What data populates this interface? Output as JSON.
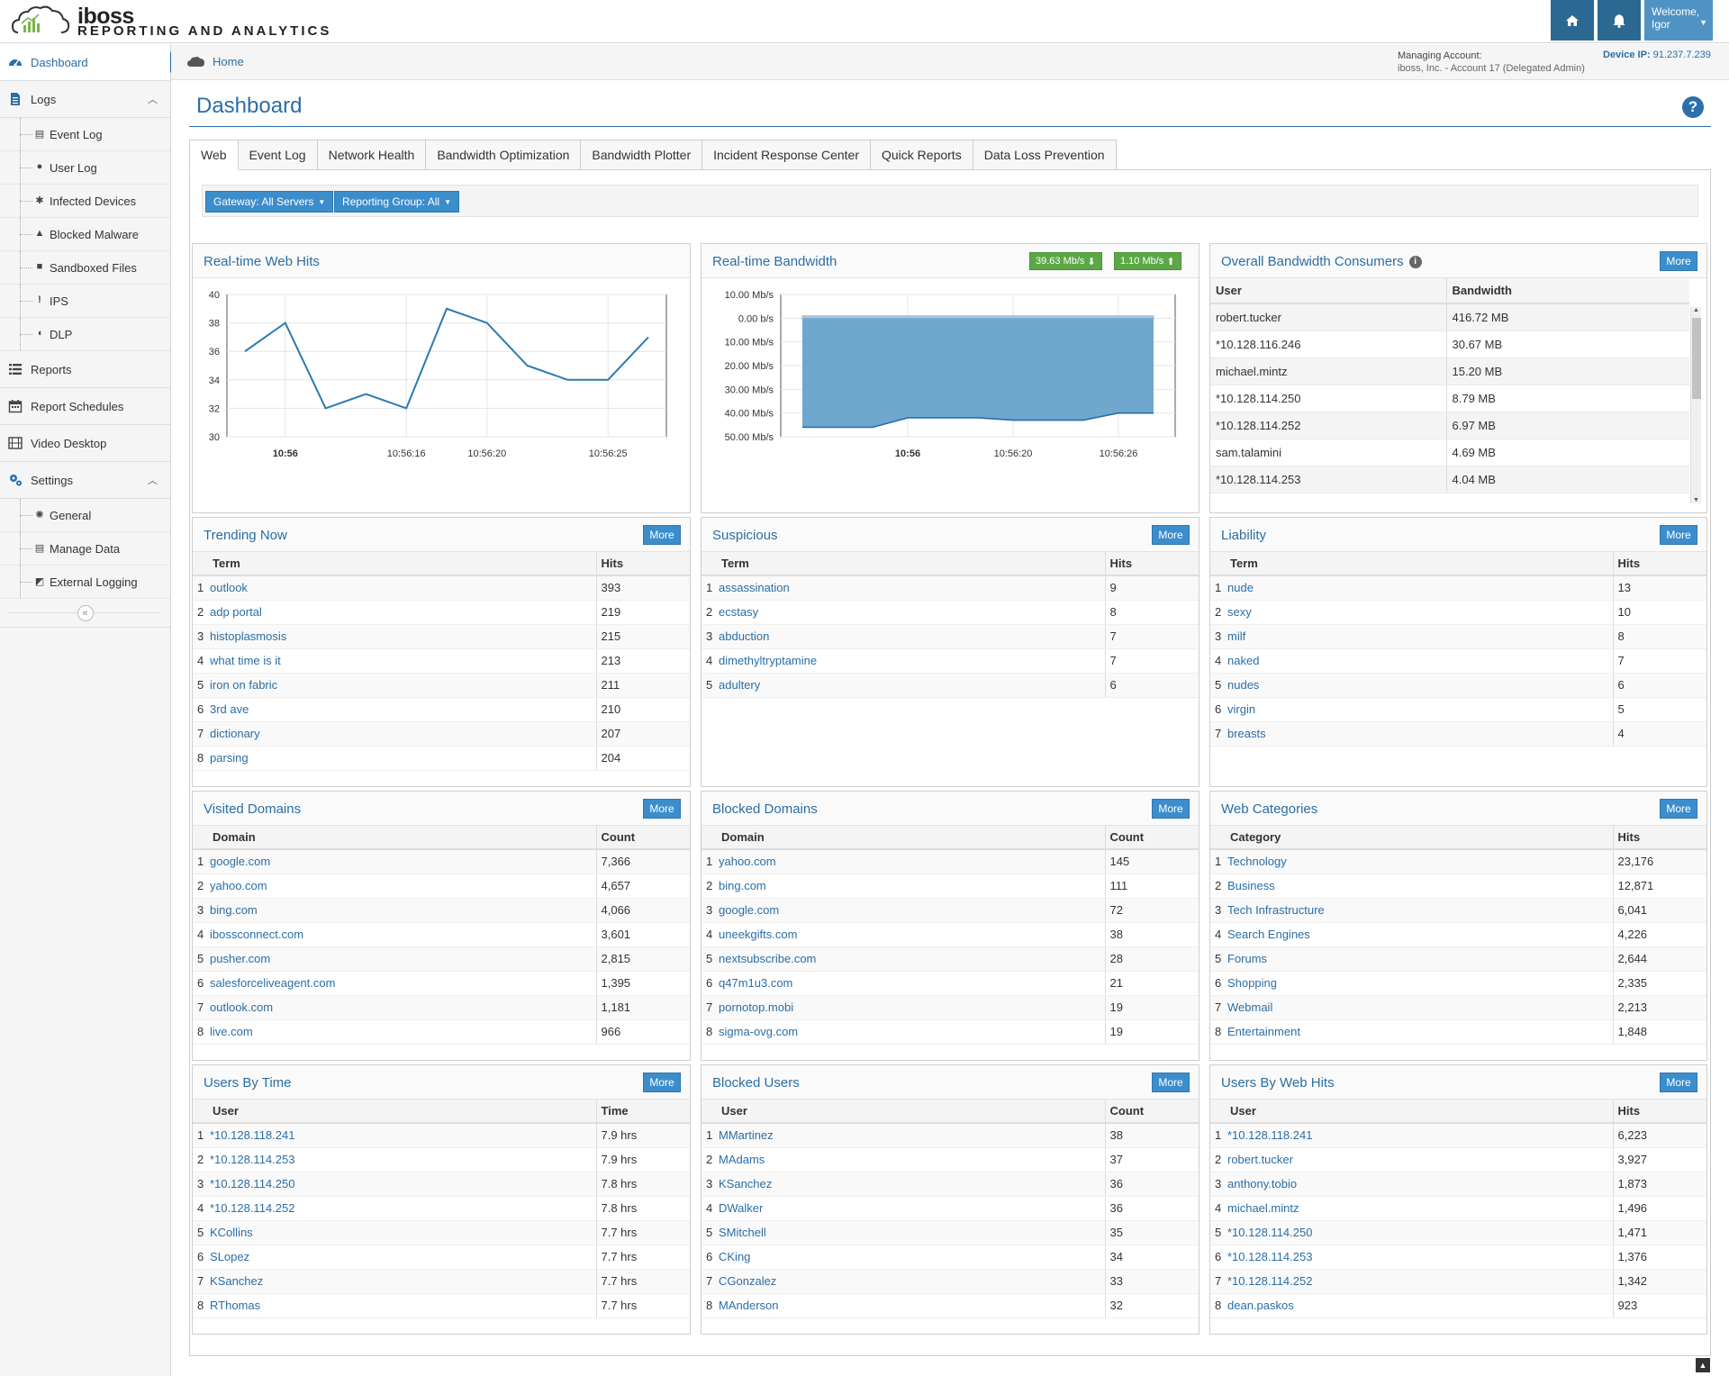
{
  "header": {
    "brand": "iboss",
    "subtitle": "REPORTING AND ANALYTICS",
    "welcome_line1": "Welcome,",
    "welcome_line2": "Igor",
    "accent": "#2b6892"
  },
  "sidebar": {
    "items": [
      {
        "label": "Dashboard",
        "icon": "dashboard-icon",
        "active": true
      },
      {
        "label": "Logs",
        "icon": "document-icon",
        "expanded": true,
        "children": [
          {
            "label": "Event Log",
            "icon": "document-icon"
          },
          {
            "label": "User Log",
            "icon": "user-icon"
          },
          {
            "label": "Infected Devices",
            "icon": "bug-icon"
          },
          {
            "label": "Blocked Malware",
            "icon": "warning-icon"
          },
          {
            "label": "Sandboxed Files",
            "icon": "box-icon"
          },
          {
            "label": "IPS",
            "icon": "exclamation-icon"
          },
          {
            "label": "DLP",
            "icon": "shield-icon"
          }
        ]
      },
      {
        "label": "Reports",
        "icon": "list-icon"
      },
      {
        "label": "Report Schedules",
        "icon": "calendar-icon"
      },
      {
        "label": "Video Desktop",
        "icon": "film-icon"
      },
      {
        "label": "Settings",
        "icon": "gears-icon",
        "expanded": true,
        "children": [
          {
            "label": "General",
            "icon": "gear-icon"
          },
          {
            "label": "Manage Data",
            "icon": "document-icon"
          },
          {
            "label": "External Logging",
            "icon": "external-icon"
          }
        ]
      }
    ]
  },
  "breadcrumb": {
    "home": "Home"
  },
  "account": {
    "managing_label": "Managing Account:",
    "managing_value": "iboss, Inc. - Account 17 (Delegated Admin)",
    "device_ip_label": "Device IP:",
    "device_ip_value": "91.237.7.239"
  },
  "page": {
    "title": "Dashboard",
    "help": "?"
  },
  "tabs": [
    "Web",
    "Event Log",
    "Network Health",
    "Bandwidth Optimization",
    "Bandwidth Plotter",
    "Incident Response Center",
    "Quick Reports",
    "Data Loss Prevention"
  ],
  "filters": {
    "gateway": "Gateway: All Servers",
    "reporting_group": "Reporting Group: All"
  },
  "more_label": "More",
  "chart_data": [
    {
      "type": "line",
      "title": "Real-time Web Hits",
      "x": [
        0,
        1,
        2,
        3,
        4,
        5,
        6,
        7,
        8,
        9,
        10
      ],
      "values": [
        36,
        38,
        32,
        33,
        32,
        39,
        38,
        35,
        34,
        34,
        37
      ],
      "ylim": [
        30,
        40
      ],
      "yticks": [
        30,
        32,
        34,
        36,
        38,
        40
      ],
      "xtick_labels": [
        {
          "at": 1,
          "label": "10:56",
          "bold": true
        },
        {
          "at": 4,
          "label": "10:56:16"
        },
        {
          "at": 6,
          "label": "10:56:20"
        },
        {
          "at": 9,
          "label": "10:56:25"
        }
      ],
      "color": "#2a7ab0"
    },
    {
      "type": "area",
      "title": "Real-time Bandwidth",
      "download": "39.63 Mb/s",
      "upload": "1.10 Mb/s",
      "ytick_labels": [
        "10.00 Mb/s",
        "0.00 b/s",
        "10.00 Mb/s",
        "20.00 Mb/s",
        "30.00 Mb/s",
        "40.00 Mb/s",
        "50.00 Mb/s"
      ],
      "ylim": [
        -10,
        50
      ],
      "x": [
        0,
        1,
        2,
        3,
        4,
        5,
        6,
        7,
        8,
        9,
        10
      ],
      "download_values": [
        46,
        46,
        46,
        42,
        42,
        42,
        43,
        43,
        43,
        40,
        40
      ],
      "upload_values": [
        1,
        1,
        1,
        1,
        1,
        1,
        1,
        1,
        1,
        1,
        1
      ],
      "xtick_labels": [
        {
          "at": 3,
          "label": "10:56",
          "bold": true
        },
        {
          "at": 6,
          "label": "10:56:20"
        },
        {
          "at": 9,
          "label": "10:56:26"
        }
      ],
      "fill": "#6fa7cf",
      "line": "#2a6ea6",
      "badge_color": "#5ba845"
    }
  ],
  "bandwidth_consumers": {
    "title": "Overall Bandwidth Consumers",
    "columns": [
      "User",
      "Bandwidth"
    ],
    "rows": [
      [
        "robert.tucker",
        "416.72 MB"
      ],
      [
        "*10.128.116.246",
        "30.67 MB"
      ],
      [
        "michael.mintz",
        "15.20 MB"
      ],
      [
        "*10.128.114.250",
        "8.79 MB"
      ],
      [
        "*10.128.114.252",
        "6.97 MB"
      ],
      [
        "sam.talamini",
        "4.69 MB"
      ],
      [
        "*10.128.114.253",
        "4.04 MB"
      ]
    ]
  },
  "panels": [
    {
      "title": "Trending Now",
      "cols": [
        "Term",
        "Hits"
      ],
      "rows": [
        [
          "outlook",
          "393"
        ],
        [
          "adp portal",
          "219"
        ],
        [
          "histoplasmosis",
          "215"
        ],
        [
          "what time is it",
          "213"
        ],
        [
          "iron on fabric",
          "211"
        ],
        [
          "3rd ave",
          "210"
        ],
        [
          "dictionary",
          "207"
        ],
        [
          "parsing",
          "204"
        ]
      ]
    },
    {
      "title": "Suspicious",
      "cols": [
        "Term",
        "Hits"
      ],
      "rows": [
        [
          "assassination",
          "9"
        ],
        [
          "ecstasy",
          "8"
        ],
        [
          "abduction",
          "7"
        ],
        [
          "dimethyltryptamine",
          "7"
        ],
        [
          "adultery",
          "6"
        ]
      ]
    },
    {
      "title": "Liability",
      "cols": [
        "Term",
        "Hits"
      ],
      "rows": [
        [
          "nude",
          "13"
        ],
        [
          "sexy",
          "10"
        ],
        [
          "milf",
          "8"
        ],
        [
          "naked",
          "7"
        ],
        [
          "nudes",
          "6"
        ],
        [
          "virgin",
          "5"
        ],
        [
          "breasts",
          "4"
        ]
      ]
    },
    {
      "title": "Visited Domains",
      "cols": [
        "Domain",
        "Count"
      ],
      "rows": [
        [
          "google.com",
          "7,366"
        ],
        [
          "yahoo.com",
          "4,657"
        ],
        [
          "bing.com",
          "4,066"
        ],
        [
          "ibossconnect.com",
          "3,601"
        ],
        [
          "pusher.com",
          "2,815"
        ],
        [
          "salesforceliveagent.com",
          "1,395"
        ],
        [
          "outlook.com",
          "1,181"
        ],
        [
          "live.com",
          "966"
        ]
      ]
    },
    {
      "title": "Blocked Domains",
      "cols": [
        "Domain",
        "Count"
      ],
      "rows": [
        [
          "yahoo.com",
          "145"
        ],
        [
          "bing.com",
          "111"
        ],
        [
          "google.com",
          "72"
        ],
        [
          "uneekgifts.com",
          "38"
        ],
        [
          "nextsubscribe.com",
          "28"
        ],
        [
          "q47m1u3.com",
          "21"
        ],
        [
          "pornotop.mobi",
          "19"
        ],
        [
          "sigma-ovg.com",
          "19"
        ]
      ]
    },
    {
      "title": "Web Categories",
      "cols": [
        "Category",
        "Hits"
      ],
      "rows": [
        [
          "Technology",
          "23,176"
        ],
        [
          "Business",
          "12,871"
        ],
        [
          "Tech Infrastructure",
          "6,041"
        ],
        [
          "Search Engines",
          "4,226"
        ],
        [
          "Forums",
          "2,644"
        ],
        [
          "Shopping",
          "2,335"
        ],
        [
          "Webmail",
          "2,213"
        ],
        [
          "Entertainment",
          "1,848"
        ]
      ]
    },
    {
      "title": "Users By Time",
      "cols": [
        "User",
        "Time"
      ],
      "rows": [
        [
          "*10.128.118.241",
          "7.9 hrs"
        ],
        [
          "*10.128.114.253",
          "7.9 hrs"
        ],
        [
          "*10.128.114.250",
          "7.8 hrs"
        ],
        [
          "*10.128.114.252",
          "7.8 hrs"
        ],
        [
          "KCollins",
          "7.7 hrs"
        ],
        [
          "SLopez",
          "7.7 hrs"
        ],
        [
          "KSanchez",
          "7.7 hrs"
        ],
        [
          "RThomas",
          "7.7 hrs"
        ]
      ]
    },
    {
      "title": "Blocked Users",
      "cols": [
        "User",
        "Count"
      ],
      "rows": [
        [
          "MMartinez",
          "38"
        ],
        [
          "MAdams",
          "37"
        ],
        [
          "KSanchez",
          "36"
        ],
        [
          "DWalker",
          "36"
        ],
        [
          "SMitchell",
          "35"
        ],
        [
          "CKing",
          "34"
        ],
        [
          "CGonzalez",
          "33"
        ],
        [
          "MAnderson",
          "32"
        ]
      ]
    },
    {
      "title": "Users By Web Hits",
      "cols": [
        "User",
        "Hits"
      ],
      "rows": [
        [
          "*10.128.118.241",
          "6,223"
        ],
        [
          "robert.tucker",
          "3,927"
        ],
        [
          "anthony.tobio",
          "1,873"
        ],
        [
          "michael.mintz",
          "1,496"
        ],
        [
          "*10.128.114.250",
          "1,471"
        ],
        [
          "*10.128.114.253",
          "1,376"
        ],
        [
          "*10.128.114.252",
          "1,342"
        ],
        [
          "dean.paskos",
          "923"
        ]
      ]
    }
  ]
}
